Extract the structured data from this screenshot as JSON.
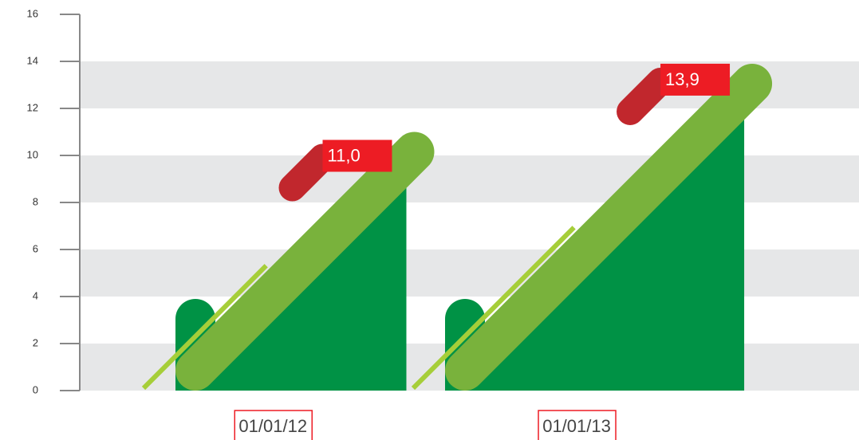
{
  "chart_data": {
    "type": "bar",
    "categories": [
      "01/01/12",
      "01/01/13"
    ],
    "values": [
      11.0,
      13.9
    ],
    "value_labels": [
      "11,0",
      "13,9"
    ],
    "ylim": [
      0,
      16
    ],
    "yticks": [
      0,
      2,
      4,
      6,
      8,
      10,
      12,
      14,
      16
    ],
    "grid": true,
    "color": "#79b23c"
  }
}
